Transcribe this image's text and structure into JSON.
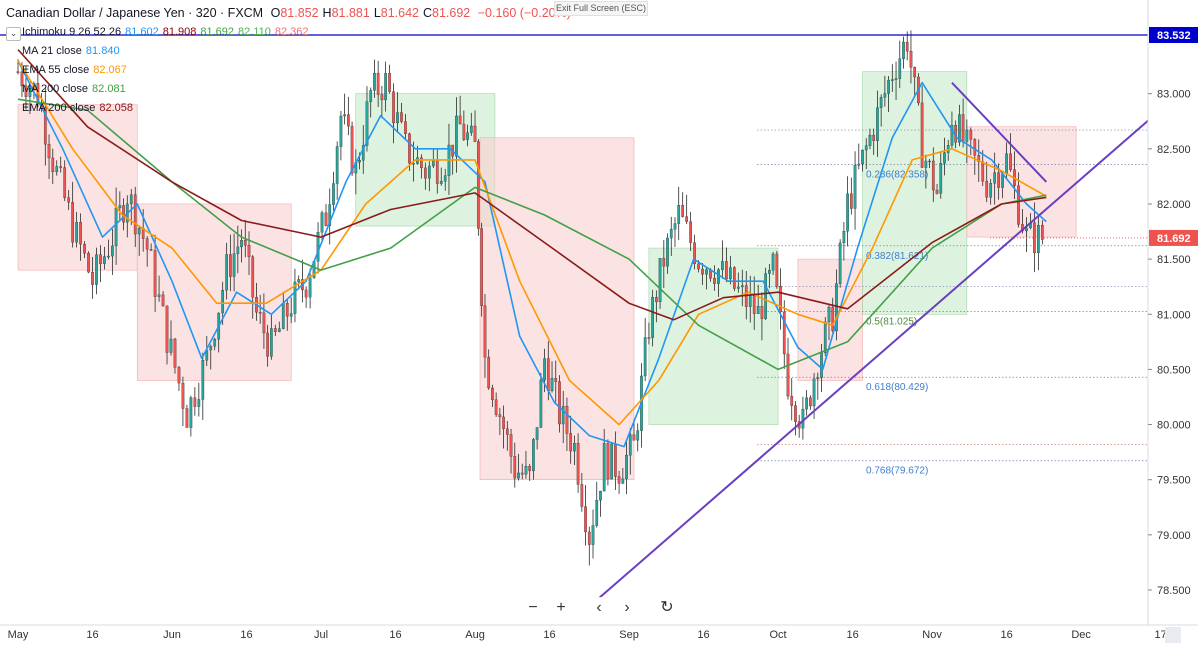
{
  "header": {
    "title": "Canadian Dollar / Japanese Yen · 320 · FXCM",
    "ohlc": [
      {
        "label": "O",
        "value": "81.852"
      },
      {
        "label": "H",
        "value": "81.881"
      },
      {
        "label": "L",
        "value": "81.642"
      },
      {
        "label": "C",
        "value": "81.692"
      }
    ],
    "change": "−0.160 (−0.20%)"
  },
  "exit_fullscreen_label": "Exit Full Screen (ESC)",
  "indicators": [
    {
      "label": "Ichimoku 9 26 52 26",
      "values": [
        "81.602",
        "81.908",
        "81.692",
        "82.110",
        "82.362"
      ],
      "colors": [
        "#2196f3",
        "#8b0000",
        "#43a047",
        "#4caf50",
        "#e57373"
      ]
    },
    {
      "label": "MA 21 close",
      "values": [
        "81.840"
      ],
      "colors": [
        "#2196f3"
      ]
    },
    {
      "label": "EMA 55 close",
      "values": [
        "82.067"
      ],
      "colors": [
        "#ff9800"
      ]
    },
    {
      "label": "MA 200 close",
      "values": [
        "82.081"
      ],
      "colors": [
        "#43a047"
      ]
    },
    {
      "label": "EMA 200 close",
      "values": [
        "82.058"
      ],
      "colors": [
        "#8b1a1a"
      ]
    }
  ],
  "colors": {
    "up": "#26a69a",
    "down": "#ef5350",
    "ma21": "#2196f3",
    "ema55": "#ff9800",
    "ma200": "#43a047",
    "ema200": "#8b1a1a",
    "trendline": "#6a3fbf",
    "resistance": "#0000cc",
    "cloud_bull": "#c8ebc9",
    "cloud_bear": "#f8d0d0"
  },
  "toolbar": {
    "zoom_out": "−",
    "zoom_in": "+",
    "scroll_left": "‹",
    "scroll_right": "›",
    "reset": "↻",
    "icons": [
      "minus-icon",
      "plus-icon",
      "chevron-left-icon",
      "chevron-right-icon",
      "reset-icon"
    ]
  },
  "chart_data": {
    "type": "candlestick",
    "title": "Canadian Dollar / Japanese Yen · 320 · FXCM",
    "instrument": "CADJPY",
    "ylim": [
      78.3,
      83.75
    ],
    "y_ticks": [
      "83.000",
      "82.500",
      "82.000",
      "81.500",
      "81.000",
      "80.500",
      "80.000",
      "79.500",
      "79.000",
      "78.500"
    ],
    "x_ticks": [
      "May",
      "16",
      "Jun",
      "16",
      "Jul",
      "16",
      "Aug",
      "16",
      "Sep",
      "16",
      "Oct",
      "16",
      "Nov",
      "16",
      "Dec",
      "17"
    ],
    "grid": false,
    "price_labels": [
      {
        "value": 83.532,
        "text": "83.532",
        "kind": "resistance"
      },
      {
        "value": 81.692,
        "text": "81.692",
        "kind": "last"
      }
    ],
    "fib_levels": [
      {
        "ratio": "0.236",
        "value": 82.358,
        "label": "0.236(82.358)"
      },
      {
        "ratio": "0.382",
        "value": 81.621,
        "label": "0.382(81.621)"
      },
      {
        "ratio": "0.5",
        "value": 81.025,
        "label": "0.5(81.025)"
      },
      {
        "ratio": "0.618",
        "value": 80.429,
        "label": "0.618(80.429)"
      },
      {
        "ratio": "0.768",
        "value": 79.672,
        "label": "0.768(79.672)"
      }
    ],
    "trendlines": [
      {
        "name": "support",
        "from": {
          "date": "Aug 24",
          "price": 78.35
        },
        "to": {
          "date": "Dec 22",
          "price": 83.05
        }
      },
      {
        "name": "down-trend",
        "from": {
          "date": "Nov 05",
          "price": 83.1
        },
        "to": {
          "date": "Nov 24",
          "price": 82.2
        }
      }
    ],
    "series_close": [
      {
        "date": "May 01",
        "price": 83.2
      },
      {
        "date": "May 05",
        "price": 83.0
      },
      {
        "date": "May 08",
        "price": 82.4
      },
      {
        "date": "May 12",
        "price": 81.8
      },
      {
        "date": "May 16",
        "price": 81.3
      },
      {
        "date": "May 20",
        "price": 81.7
      },
      {
        "date": "May 23",
        "price": 82.1
      },
      {
        "date": "May 27",
        "price": 81.6
      },
      {
        "date": "May 31",
        "price": 80.8
      },
      {
        "date": "Jun 04",
        "price": 80.1
      },
      {
        "date": "Jun 08",
        "price": 80.6
      },
      {
        "date": "Jun 12",
        "price": 81.4
      },
      {
        "date": "Jun 15",
        "price": 81.7
      },
      {
        "date": "Jun 18",
        "price": 81.0
      },
      {
        "date": "Jun 21",
        "price": 80.7
      },
      {
        "date": "Jun 25",
        "price": 81.1
      },
      {
        "date": "Jun 28",
        "price": 81.3
      },
      {
        "date": "Jul 02",
        "price": 81.9
      },
      {
        "date": "Jul 05",
        "price": 82.8
      },
      {
        "date": "Jul 08",
        "price": 82.3
      },
      {
        "date": "Jul 11",
        "price": 83.0
      },
      {
        "date": "Jul 14",
        "price": 83.1
      },
      {
        "date": "Jul 18",
        "price": 82.5
      },
      {
        "date": "Jul 22",
        "price": 82.3
      },
      {
        "date": "Jul 26",
        "price": 82.4
      },
      {
        "date": "Jul 29",
        "price": 82.7
      },
      {
        "date": "Aug 01",
        "price": 82.5
      },
      {
        "date": "Aug 03",
        "price": 80.6
      },
      {
        "date": "Aug 06",
        "price": 80.1
      },
      {
        "date": "Aug 09",
        "price": 79.6
      },
      {
        "date": "Aug 12",
        "price": 79.5
      },
      {
        "date": "Aug 15",
        "price": 80.6
      },
      {
        "date": "Aug 18",
        "price": 80.1
      },
      {
        "date": "Aug 21",
        "price": 79.8
      },
      {
        "date": "Aug 24",
        "price": 79.0
      },
      {
        "date": "Aug 27",
        "price": 79.7
      },
      {
        "date": "Aug 30",
        "price": 79.6
      },
      {
        "date": "Sep 02",
        "price": 79.8
      },
      {
        "date": "Sep 05",
        "price": 80.9
      },
      {
        "date": "Sep 08",
        "price": 81.5
      },
      {
        "date": "Sep 11",
        "price": 81.9
      },
      {
        "date": "Sep 15",
        "price": 81.5
      },
      {
        "date": "Sep 19",
        "price": 81.4
      },
      {
        "date": "Sep 23",
        "price": 81.2
      },
      {
        "date": "Sep 27",
        "price": 81.0
      },
      {
        "date": "Sep 30",
        "price": 81.4
      },
      {
        "date": "Oct 03",
        "price": 80.4
      },
      {
        "date": "Oct 06",
        "price": 80.0
      },
      {
        "date": "Oct 09",
        "price": 80.6
      },
      {
        "date": "Oct 12",
        "price": 81.0
      },
      {
        "date": "Oct 15",
        "price": 82.0
      },
      {
        "date": "Oct 18",
        "price": 82.4
      },
      {
        "date": "Oct 21",
        "price": 82.8
      },
      {
        "date": "Oct 24",
        "price": 83.2
      },
      {
        "date": "Oct 27",
        "price": 83.5
      },
      {
        "date": "Oct 30",
        "price": 82.5
      },
      {
        "date": "Nov 02",
        "price": 82.1
      },
      {
        "date": "Nov 05",
        "price": 82.8
      },
      {
        "date": "Nov 08",
        "price": 82.5
      },
      {
        "date": "Nov 12",
        "price": 82.2
      },
      {
        "date": "Nov 16",
        "price": 82.4
      },
      {
        "date": "Nov 20",
        "price": 81.7
      },
      {
        "date": "Nov 24",
        "price": 81.69
      }
    ],
    "series": [
      {
        "name": "MA 21 close",
        "key": "ma21",
        "points": [
          [
            "May 01",
            83.3
          ],
          [
            "May 10",
            82.5
          ],
          [
            "May 18",
            81.7
          ],
          [
            "May 25",
            82.0
          ],
          [
            "Jun 01",
            81.3
          ],
          [
            "Jun 07",
            80.6
          ],
          [
            "Jun 14",
            81.2
          ],
          [
            "Jun 21",
            81.0
          ],
          [
            "Jun 28",
            81.3
          ],
          [
            "Jul 06",
            82.2
          ],
          [
            "Jul 13",
            82.8
          ],
          [
            "Jul 20",
            82.5
          ],
          [
            "Jul 27",
            82.5
          ],
          [
            "Aug 03",
            82.2
          ],
          [
            "Aug 10",
            80.8
          ],
          [
            "Aug 17",
            80.2
          ],
          [
            "Aug 24",
            79.9
          ],
          [
            "Aug 31",
            79.8
          ],
          [
            "Sep 07",
            80.6
          ],
          [
            "Sep 14",
            81.5
          ],
          [
            "Sep 21",
            81.3
          ],
          [
            "Sep 28",
            81.3
          ],
          [
            "Oct 05",
            80.7
          ],
          [
            "Oct 10",
            80.5
          ],
          [
            "Oct 17",
            81.6
          ],
          [
            "Oct 24",
            82.6
          ],
          [
            "Oct 30",
            83.1
          ],
          [
            "Nov 06",
            82.6
          ],
          [
            "Nov 13",
            82.4
          ],
          [
            "Nov 20",
            82.0
          ],
          [
            "Nov 24",
            81.84
          ]
        ]
      },
      {
        "name": "EMA 55 close",
        "key": "ema55",
        "points": [
          [
            "May 01",
            83.3
          ],
          [
            "May 12",
            82.5
          ],
          [
            "May 22",
            81.9
          ],
          [
            "Jun 01",
            81.6
          ],
          [
            "Jun 10",
            81.1
          ],
          [
            "Jun 20",
            81.1
          ],
          [
            "Jul 01",
            81.4
          ],
          [
            "Jul 10",
            82.0
          ],
          [
            "Jul 20",
            82.4
          ],
          [
            "Aug 01",
            82.4
          ],
          [
            "Aug 10",
            81.3
          ],
          [
            "Aug 20",
            80.4
          ],
          [
            "Aug 30",
            80.0
          ],
          [
            "Sep 07",
            80.4
          ],
          [
            "Sep 15",
            81.0
          ],
          [
            "Sep 25",
            81.2
          ],
          [
            "Oct 05",
            81.0
          ],
          [
            "Oct 12",
            80.9
          ],
          [
            "Oct 20",
            81.6
          ],
          [
            "Oct 28",
            82.4
          ],
          [
            "Nov 05",
            82.5
          ],
          [
            "Nov 15",
            82.3
          ],
          [
            "Nov 24",
            82.07
          ]
        ]
      },
      {
        "name": "MA 200 close",
        "key": "ma200",
        "points": [
          [
            "May 01",
            82.95
          ],
          [
            "May 15",
            82.85
          ],
          [
            "Jun 01",
            82.2
          ],
          [
            "Jun 15",
            81.7
          ],
          [
            "Jul 01",
            81.4
          ],
          [
            "Jul 15",
            81.6
          ],
          [
            "Aug 01",
            82.15
          ],
          [
            "Aug 15",
            81.9
          ],
          [
            "Sep 01",
            81.5
          ],
          [
            "Sep 15",
            80.9
          ],
          [
            "Oct 01",
            80.5
          ],
          [
            "Oct 15",
            80.75
          ],
          [
            "Nov 01",
            81.6
          ],
          [
            "Nov 15",
            82.0
          ],
          [
            "Nov 24",
            82.08
          ]
        ]
      },
      {
        "name": "EMA 200 close",
        "key": "ema200",
        "points": [
          [
            "May 01",
            83.4
          ],
          [
            "May 15",
            82.7
          ],
          [
            "Jun 01",
            82.2
          ],
          [
            "Jun 15",
            81.85
          ],
          [
            "Jul 01",
            81.7
          ],
          [
            "Jul 15",
            81.95
          ],
          [
            "Aug 01",
            82.1
          ],
          [
            "Aug 15",
            81.65
          ],
          [
            "Sep 01",
            81.1
          ],
          [
            "Sep 10",
            80.95
          ],
          [
            "Sep 20",
            81.15
          ],
          [
            "Oct 01",
            81.2
          ],
          [
            "Oct 15",
            81.05
          ],
          [
            "Nov 01",
            81.65
          ],
          [
            "Nov 15",
            82.0
          ],
          [
            "Nov 24",
            82.06
          ]
        ]
      }
    ],
    "cloud": [
      {
        "from": "May 01",
        "to": "May 25",
        "top": 82.9,
        "bottom": 81.4,
        "sentiment": "bear"
      },
      {
        "from": "May 25",
        "to": "Jun 25",
        "top": 82.0,
        "bottom": 80.4,
        "sentiment": "bear"
      },
      {
        "from": "Jul 08",
        "to": "Aug 05",
        "top": 83.0,
        "bottom": 81.8,
        "sentiment": "bull"
      },
      {
        "from": "Aug 02",
        "to": "Sep 02",
        "top": 82.6,
        "bottom": 79.5,
        "sentiment": "bear"
      },
      {
        "from": "Sep 05",
        "to": "Oct 01",
        "top": 81.6,
        "bottom": 80.0,
        "sentiment": "bull"
      },
      {
        "from": "Oct 05",
        "to": "Oct 18",
        "top": 81.5,
        "bottom": 80.4,
        "sentiment": "bear"
      },
      {
        "from": "Oct 18",
        "to": "Nov 08",
        "top": 83.2,
        "bottom": 81.0,
        "sentiment": "bull"
      },
      {
        "from": "Nov 08",
        "to": "Nov 30",
        "top": 82.7,
        "bottom": 81.7,
        "sentiment": "bear"
      }
    ]
  }
}
